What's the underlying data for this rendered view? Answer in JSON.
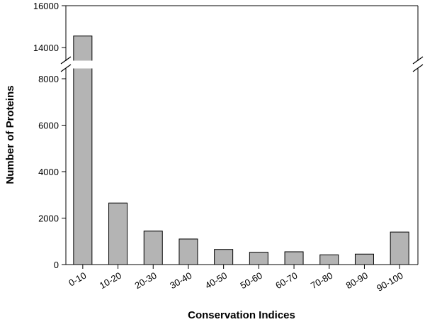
{
  "chart_data": {
    "type": "bar",
    "title": "",
    "xlabel": "Conservation Indices",
    "ylabel": "Number of Proteins",
    "categories": [
      "0-10",
      "10-20",
      "20-30",
      "30-40",
      "40-50",
      "50-60",
      "60-70",
      "70-80",
      "80-90",
      "90-100"
    ],
    "values": [
      14550,
      2650,
      1440,
      1100,
      650,
      530,
      550,
      420,
      450,
      1400
    ],
    "ylim": [
      0,
      16000
    ],
    "axis_break": [
      8500,
      13500
    ],
    "yticks": [
      "0",
      "2000",
      "4000",
      "6000",
      "8000",
      "14000",
      "16000"
    ],
    "bar_color": "#b4b4b4",
    "grid": false,
    "legend": "none"
  }
}
